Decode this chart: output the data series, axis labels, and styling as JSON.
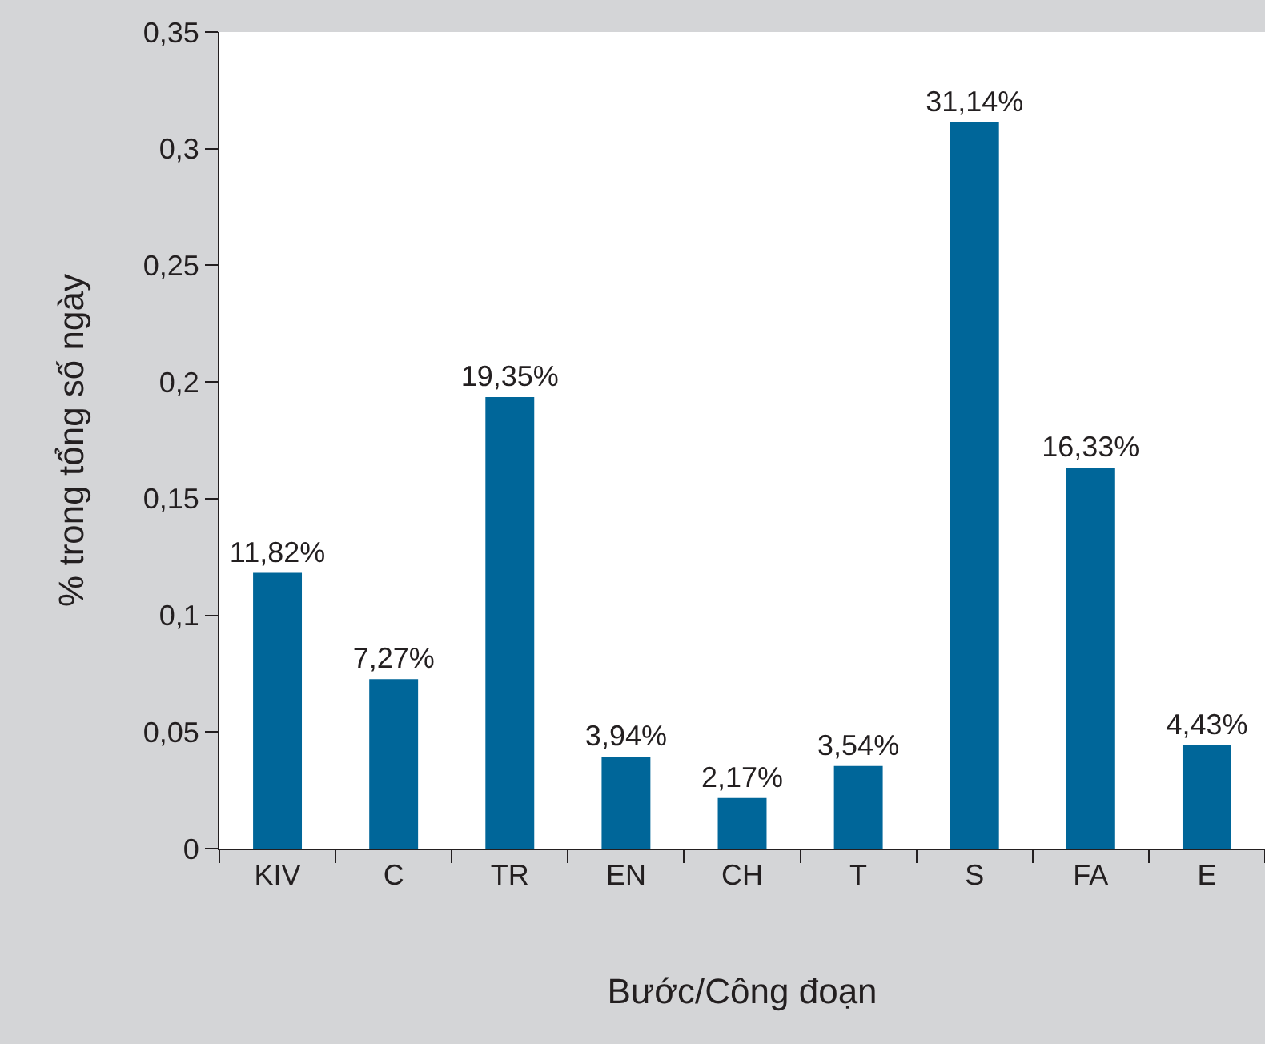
{
  "chart_data": {
    "type": "bar",
    "xlabel": "Bước/Công đoạn",
    "ylabel": "% trong tổng số ngày",
    "categories": [
      "KIV",
      "C",
      "TR",
      "EN",
      "CH",
      "T",
      "S",
      "FA",
      "E"
    ],
    "values": [
      0.1182,
      0.0727,
      0.1935,
      0.0394,
      0.0217,
      0.0354,
      0.3114,
      0.1633,
      0.0443
    ],
    "value_labels": [
      "11,82%",
      "7,27%",
      "19,35%",
      "3,94%",
      "2,17%",
      "3,54%",
      "31,14%",
      "16,33%",
      "4,43%"
    ],
    "color": "#006699",
    "ylim": [
      0,
      0.35
    ],
    "yticks": [
      {
        "value": 0,
        "label": "0"
      },
      {
        "value": 0.05,
        "label": "0,05"
      },
      {
        "value": 0.1,
        "label": "0,1"
      },
      {
        "value": 0.15,
        "label": "0,15"
      },
      {
        "value": 0.2,
        "label": "0,2"
      },
      {
        "value": 0.25,
        "label": "0,25"
      },
      {
        "value": 0.3,
        "label": "0,3"
      },
      {
        "value": 0.35,
        "label": "0,35"
      }
    ],
    "legend": false
  }
}
